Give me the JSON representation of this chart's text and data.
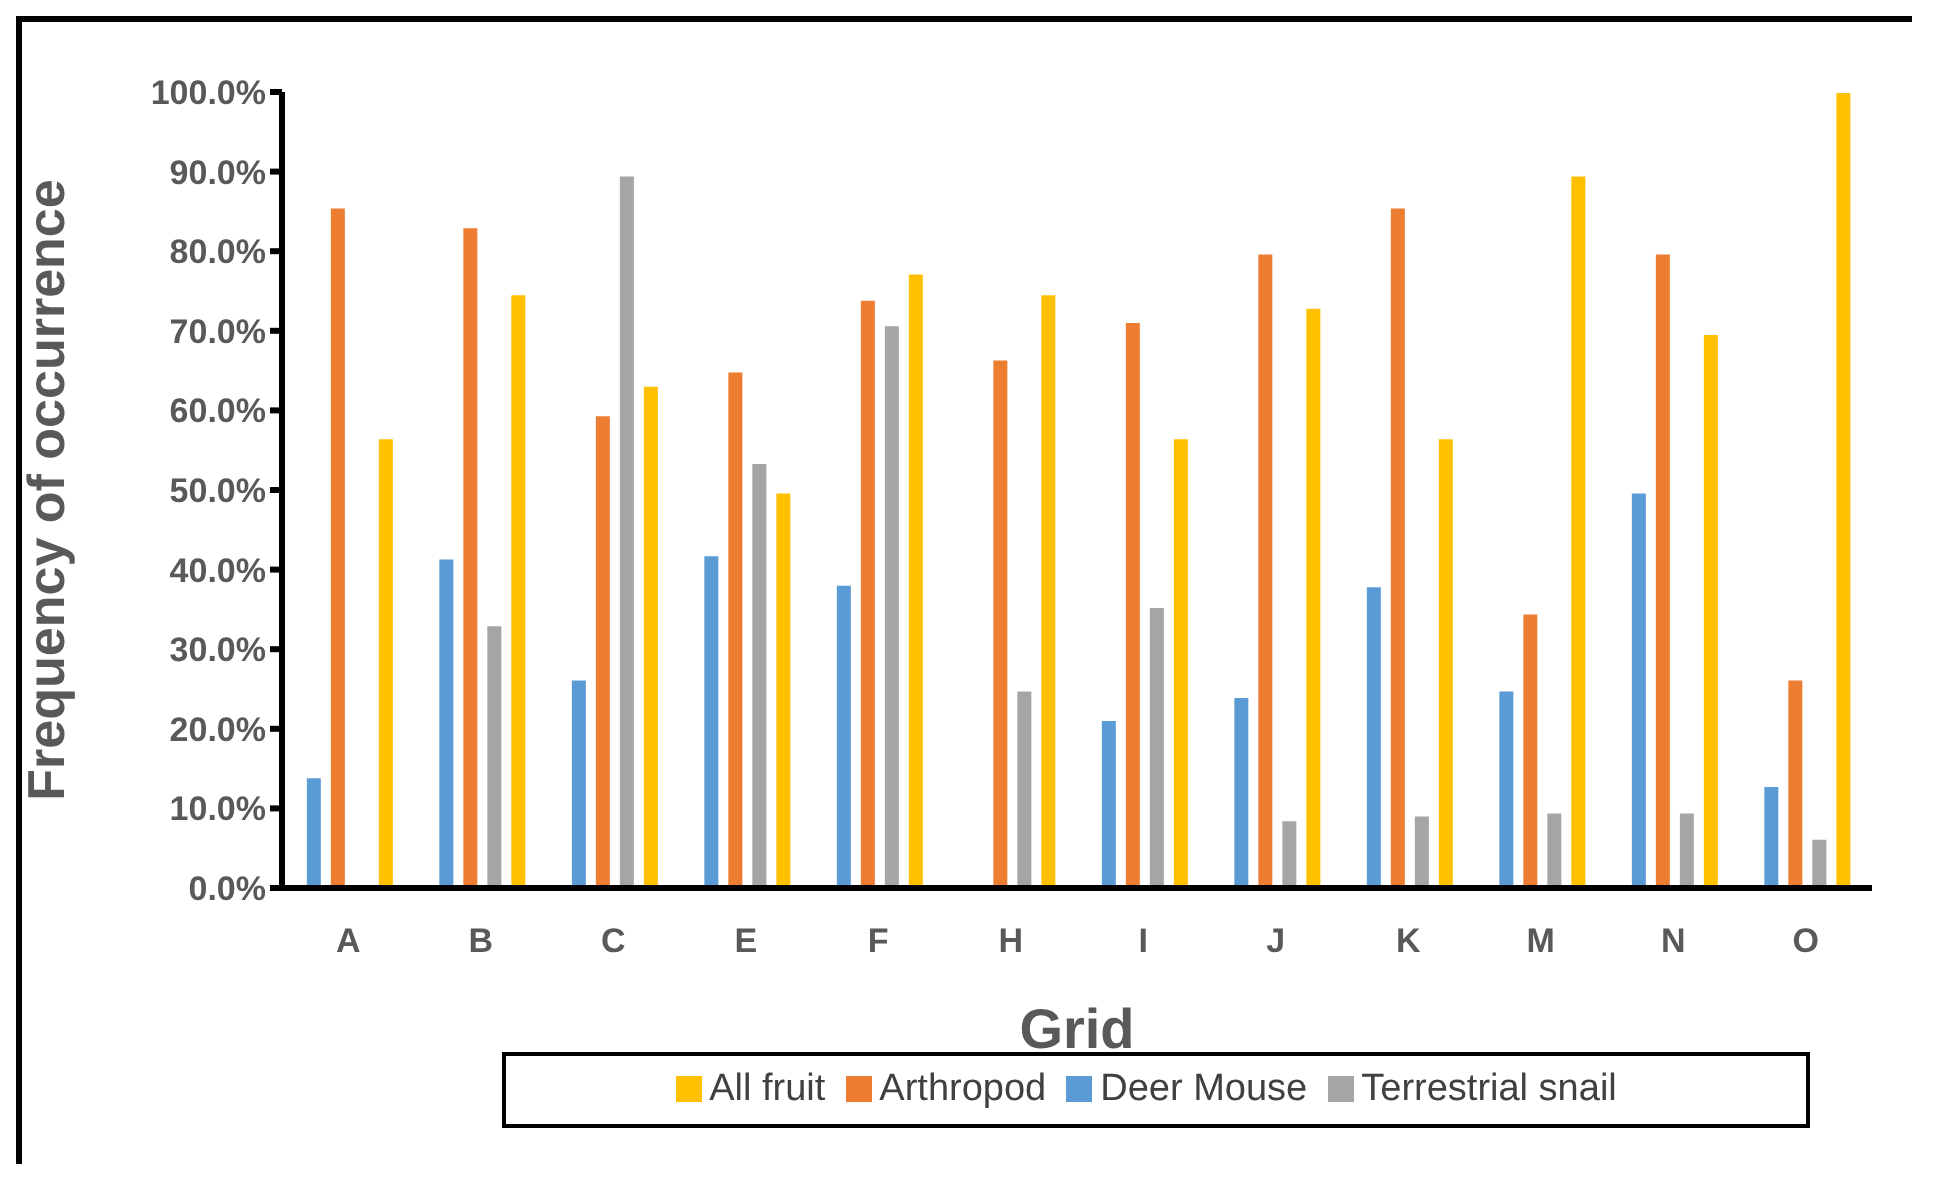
{
  "chart_data": {
    "type": "bar",
    "xlabel": "Grid",
    "ylabel": "Frequency of occurrence",
    "categories": [
      "A",
      "B",
      "C",
      "E",
      "F",
      "H",
      "I",
      "J",
      "K",
      "M",
      "N",
      "O"
    ],
    "series": [
      {
        "name": "Deer Mouse",
        "color": "#5b9bd5",
        "values": [
          13.9,
          41.4,
          26.2,
          41.8,
          38.1,
          null,
          21.1,
          24.0,
          37.9,
          24.8,
          49.7,
          12.8
        ]
      },
      {
        "name": "Arthropod",
        "color": "#ed7d31",
        "values": [
          85.5,
          83.0,
          59.4,
          64.9,
          73.9,
          66.4,
          71.1,
          79.7,
          85.5,
          34.5,
          79.7,
          26.2
        ]
      },
      {
        "name": "Terrestrial snail",
        "color": "#a5a5a5",
        "values": [
          null,
          33.0,
          89.5,
          53.4,
          70.7,
          24.8,
          35.3,
          8.5,
          9.1,
          9.5,
          9.5,
          6.2
        ]
      },
      {
        "name": "All fruit",
        "color": "#ffc000",
        "values": [
          56.5,
          74.6,
          63.1,
          49.7,
          77.2,
          74.6,
          56.5,
          72.9,
          56.5,
          89.5,
          69.6,
          100
        ]
      }
    ],
    "ylim": [
      0,
      100
    ],
    "yticks": [
      {
        "value": 0,
        "label": "0.0%"
      },
      {
        "value": 10,
        "label": "10.0%"
      },
      {
        "value": 20,
        "label": "20.0%"
      },
      {
        "value": 30,
        "label": "30.0%"
      },
      {
        "value": 40,
        "label": "40.0%"
      },
      {
        "value": 50,
        "label": "50.0%"
      },
      {
        "value": 60,
        "label": "60.0%"
      },
      {
        "value": 70,
        "label": "70.0%"
      },
      {
        "value": 80,
        "label": "80.0%"
      },
      {
        "value": 90,
        "label": "90.0%"
      },
      {
        "value": 100,
        "label": "100.0%"
      }
    ],
    "grid": false,
    "legend": "bottom"
  }
}
